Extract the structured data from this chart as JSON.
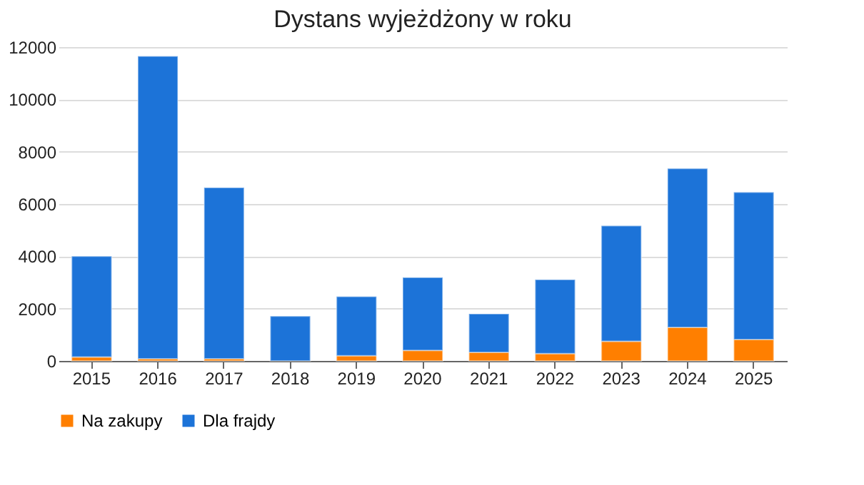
{
  "chart_data": {
    "type": "bar",
    "title": "Dystans wyjeżdżony w roku",
    "stacked": true,
    "categories": [
      "2015",
      "2016",
      "2017",
      "2018",
      "2019",
      "2020",
      "2021",
      "2022",
      "2023",
      "2024",
      "2025"
    ],
    "series": [
      {
        "name": "Na zakupy",
        "color": "#ff7f00",
        "values": [
          150,
          80,
          80,
          null,
          200,
          400,
          330,
          280,
          750,
          1280,
          820
        ]
      },
      {
        "name": "Dla frajdy",
        "color": "#1c73d8",
        "values": [
          3850,
          11570,
          6550,
          1710,
          2260,
          2790,
          1470,
          2830,
          4420,
          6080,
          5630
        ]
      }
    ],
    "ylim": [
      0,
      12000
    ],
    "yticks": [
      0,
      2000,
      4000,
      6000,
      8000,
      10000,
      12000
    ],
    "grid": "y",
    "legend": "bottom"
  }
}
